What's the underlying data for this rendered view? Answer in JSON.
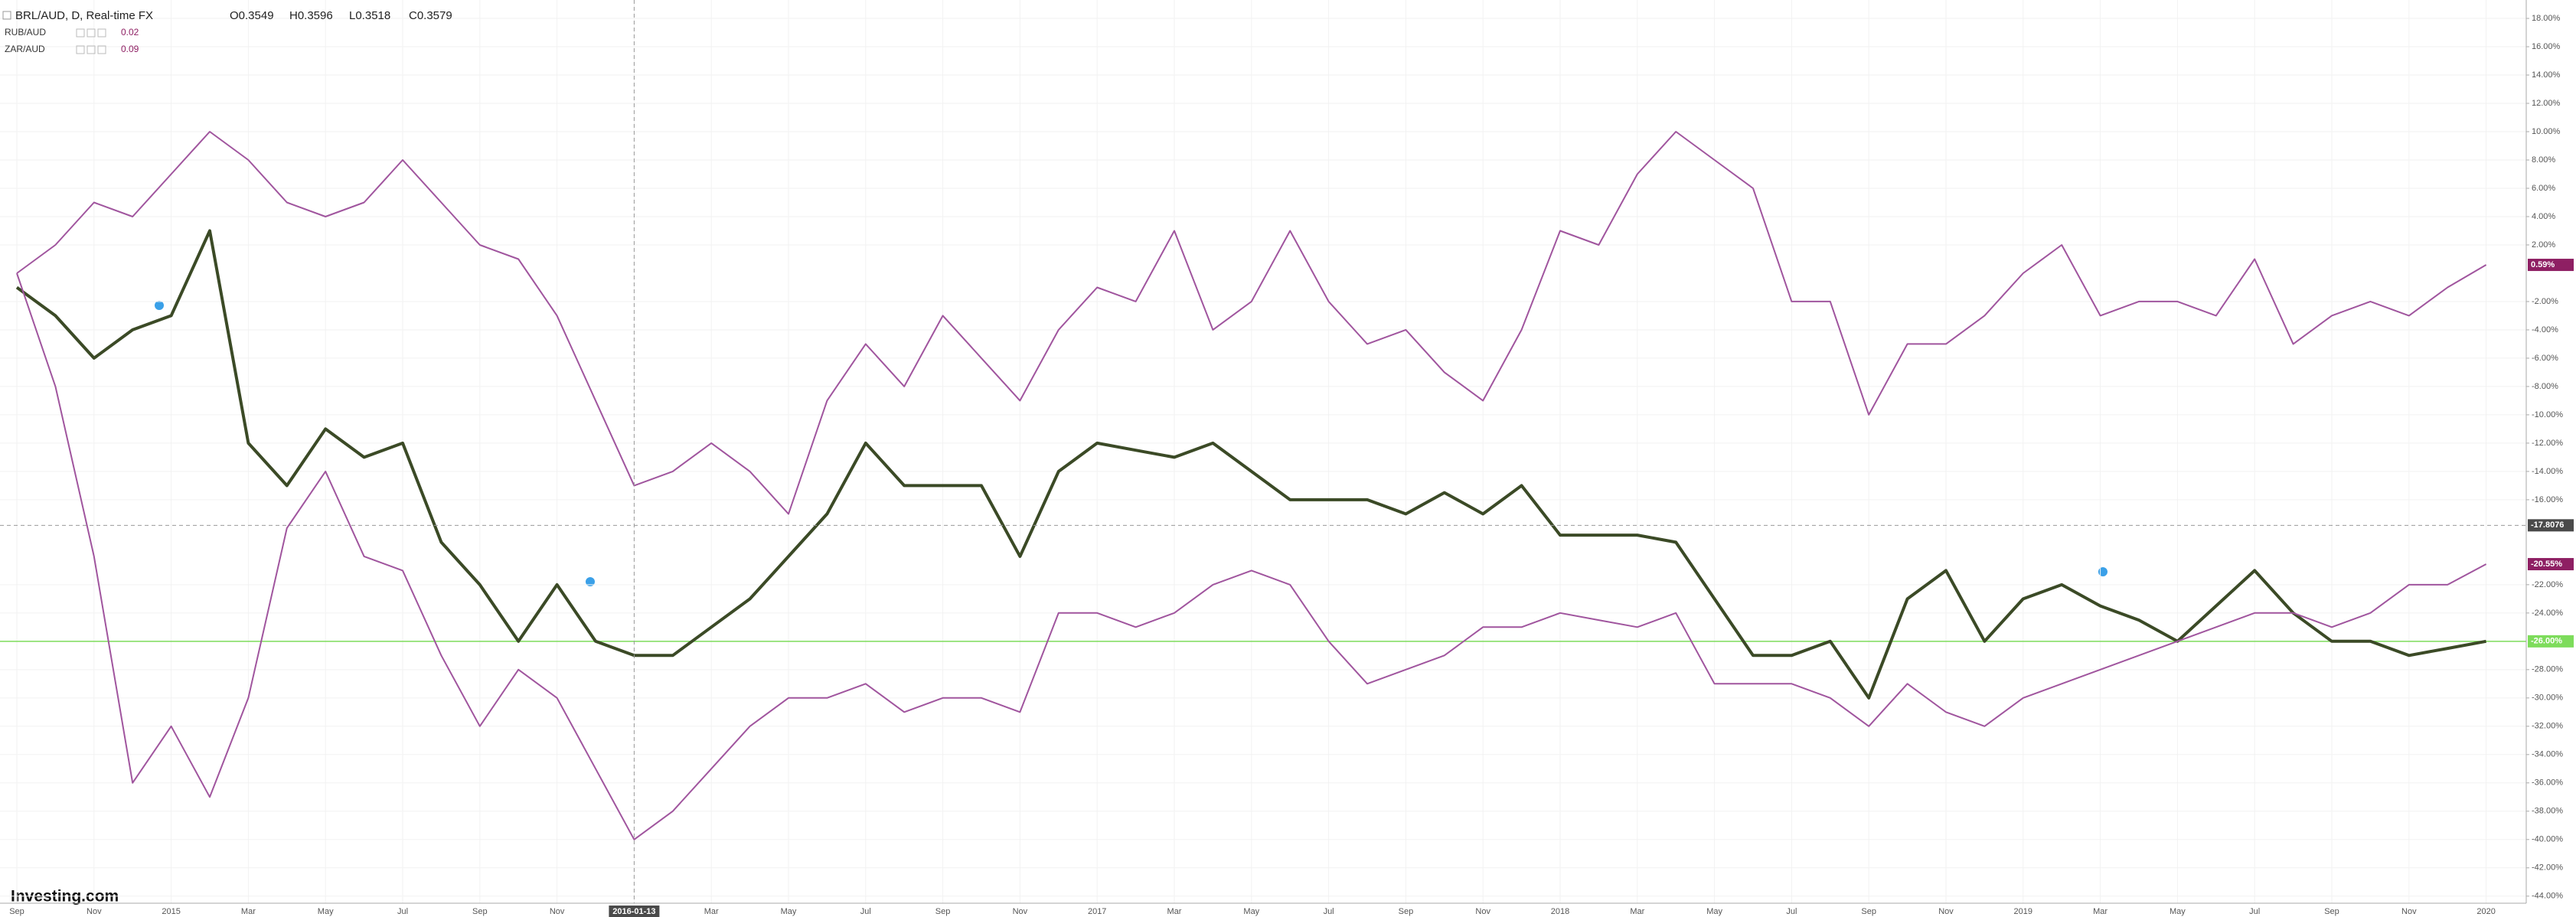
{
  "chart_data": {
    "type": "line",
    "watermark": "Investing.com",
    "ohlc": [
      "O0.3549",
      "H0.3596",
      "L0.3518",
      "C0.3579"
    ],
    "categories": [
      "Sep",
      null,
      "Nov",
      null,
      "2015",
      null,
      "Mar",
      null,
      "May",
      null,
      "Jul",
      null,
      "Sep",
      null,
      "Nov",
      null,
      "2016-01-13",
      null,
      "Mar",
      null,
      "May",
      null,
      "Jul",
      null,
      "Sep",
      null,
      "Nov",
      null,
      "2017",
      null,
      "Mar",
      null,
      "May",
      null,
      "Jul",
      null,
      "Sep",
      null,
      "Nov",
      null,
      "2018",
      null,
      "Mar",
      null,
      "May",
      null,
      "Jul",
      null,
      "Sep",
      null,
      "Nov",
      null,
      "2019",
      null,
      "Mar",
      null,
      "May",
      null,
      "Jul",
      null,
      "Sep",
      null,
      "Nov",
      null,
      "2020"
    ],
    "series": [
      {
        "name": "BRL/AUD, D, Real-time FX",
        "color": "#3b4a26",
        "values": [
          -1,
          -3,
          -6,
          -4,
          -3,
          3,
          -12,
          -15,
          -11,
          -13,
          -12,
          -19,
          -22,
          -26,
          -22,
          -26,
          -27,
          -27,
          -25,
          -23,
          -20,
          -17,
          -12,
          -15,
          -15,
          -15,
          -20,
          -14,
          -12,
          -12.5,
          -13,
          -12,
          -14,
          -16,
          -16,
          -16,
          -17,
          -15.5,
          -17,
          -15,
          -18.5,
          -18.5,
          -18.5,
          -19,
          -23,
          -27,
          -27,
          -26,
          -30,
          -23,
          -21,
          -26,
          -23,
          -22,
          -23.5,
          -24.5,
          -26,
          -23.5,
          -21,
          -24,
          -26,
          -26,
          -27,
          -26.5,
          -26
        ]
      },
      {
        "name": "RUB/AUD",
        "color": "#a0559e",
        "legend_value": 0.02,
        "last_label": "-20.55%",
        "label_color": "#8e1f63",
        "values": [
          0,
          -8,
          -20,
          -36,
          -32,
          -37,
          -30,
          -18,
          -14,
          -20,
          -21,
          -27,
          -32,
          -28,
          -30,
          -35,
          -40,
          -38,
          -35,
          -32,
          -30,
          -30,
          -29,
          -31,
          -30,
          -30,
          -31,
          -24,
          -24,
          -25,
          -24,
          -22,
          -21,
          -22,
          -26,
          -29,
          -28,
          -27,
          -25,
          -25,
          -24,
          -24.5,
          -25,
          -24,
          -29,
          -29,
          -29,
          -30,
          -32,
          -29,
          -31,
          -32,
          -30,
          -29,
          -28,
          -27,
          -26,
          -25,
          -24,
          -24,
          -25,
          -24,
          -22,
          -22,
          -20.55
        ]
      },
      {
        "name": "ZAR/AUD",
        "color": "#a0559e",
        "legend_value": 0.09,
        "last_label": "0.59%",
        "label_color": "#8e1f63",
        "values": [
          0,
          2,
          5,
          4,
          7,
          10,
          8,
          5,
          4,
          5,
          8,
          5,
          2,
          1,
          -3,
          -9,
          -15,
          -14,
          -12,
          -14,
          -17,
          -9,
          -5,
          -8,
          -3,
          -6,
          -9,
          -4,
          -1,
          -2,
          3,
          -4,
          -2,
          3,
          -2,
          -5,
          -4,
          -7,
          -9,
          -4,
          3,
          2,
          7,
          10,
          8,
          6,
          -2,
          -2,
          -10,
          -5,
          -5,
          -3,
          0,
          2,
          -3,
          -2,
          -2,
          -3,
          1,
          -5,
          -3,
          -2,
          -3,
          -1,
          0.59
        ]
      }
    ],
    "price_line": {
      "value": -26,
      "label": "-26.00%",
      "color": "#7ddc5b"
    },
    "crosshair_y": -17.8076,
    "crosshair_x": "2016-01-13",
    "ylim": [
      -44.5,
      19.3
    ],
    "yticks": [
      {
        "value": -44,
        "label": "-44.00%"
      },
      {
        "value": -42,
        "label": "-42.00%"
      },
      {
        "value": -40,
        "label": "-40.00%"
      },
      {
        "value": -38,
        "label": "-38.00%"
      },
      {
        "value": -36,
        "label": "-36.00%"
      },
      {
        "value": -34,
        "label": "-34.00%"
      },
      {
        "value": -32,
        "label": "-32.00%"
      },
      {
        "value": -30,
        "label": "-30.00%"
      },
      {
        "value": -28,
        "label": "-28.00%"
      },
      {
        "value": -24,
        "label": "-24.00%"
      },
      {
        "value": -22,
        "label": "-22.00%"
      },
      {
        "value": -16,
        "label": "-16.00%"
      },
      {
        "value": -14,
        "label": "-14.00%"
      },
      {
        "value": -12,
        "label": "-12.00%"
      },
      {
        "value": -10,
        "label": "-10.00%"
      },
      {
        "value": -8,
        "label": "-8.00%"
      },
      {
        "value": -6,
        "label": "-6.00%"
      },
      {
        "value": -4,
        "label": "-4.00%"
      },
      {
        "value": -2,
        "label": "-2.00%"
      },
      {
        "value": 2,
        "label": "2.00%"
      },
      {
        "value": 4,
        "label": "4.00%"
      },
      {
        "value": 6,
        "label": "6.00%"
      },
      {
        "value": 8,
        "label": "8.00%"
      },
      {
        "value": 10,
        "label": "10.00%"
      },
      {
        "value": 12,
        "label": "12.00%"
      },
      {
        "value": 14,
        "label": "14.00%"
      },
      {
        "value": 16,
        "label": "16.00%"
      },
      {
        "value": 18,
        "label": "18.00%"
      }
    ],
    "grid": true
  }
}
